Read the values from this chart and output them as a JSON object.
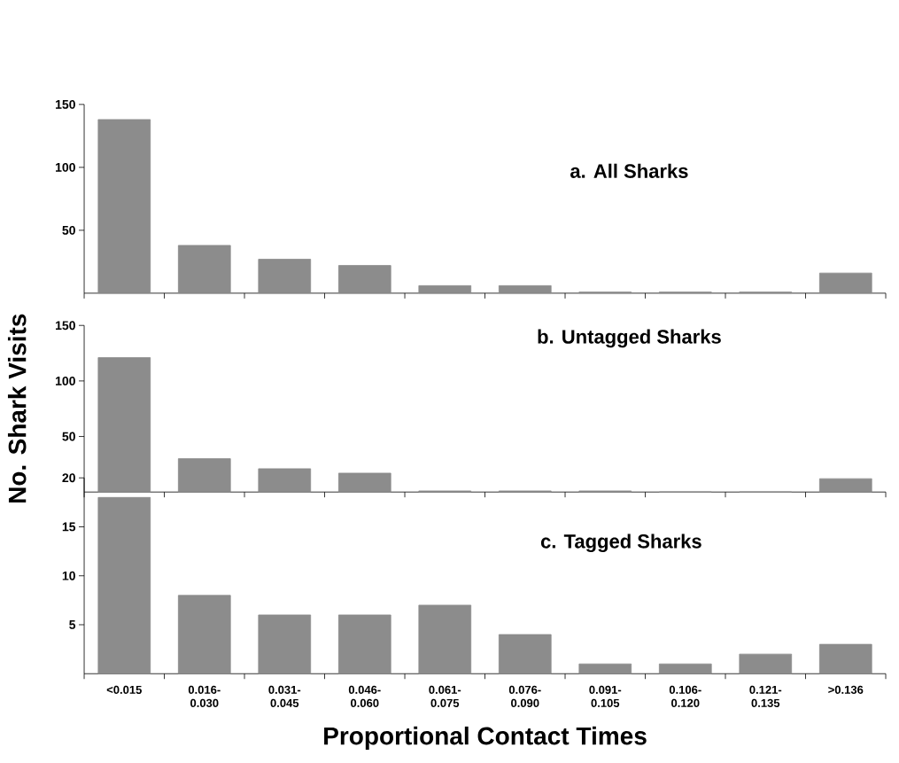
{
  "chart_data": [
    {
      "type": "bar",
      "title": "a. All Sharks",
      "categories": [
        null,
        null,
        null,
        null,
        null,
        null,
        null,
        null,
        null,
        null
      ],
      "values": [
        138,
        38,
        27,
        22,
        6,
        6,
        1,
        1,
        1,
        16
      ],
      "color": "#8c8c8c",
      "ylim": [
        0,
        150
      ],
      "yticks": [
        50,
        100,
        150
      ],
      "tick_labels": "y"
    },
    {
      "type": "bar",
      "title": "b. Untagged Sharks",
      "ylabel": "No. Shark Visits",
      "categories": [
        null,
        null,
        null,
        null,
        null,
        null,
        null,
        null,
        null,
        null
      ],
      "values": [
        121,
        30,
        21,
        17,
        1,
        1,
        1,
        0,
        0,
        12
      ],
      "color": "#8c8c8c",
      "ylim": [
        0,
        150
      ],
      "yticks": [
        50,
        100,
        150
      ],
      "tick_labels": "y"
    },
    {
      "type": "bar",
      "title": "c. Tagged Sharks",
      "xlabel": "Proportional Contact Times",
      "categories": [
        "<0.015",
        "0.016- 0.030",
        "0.031- 0.045",
        "0.046- 0.060",
        "0.061- 0.075",
        "0.076- 0.090",
        "0.091- 0.105",
        "0.106- 0.120",
        "0.121- 0.135",
        ">0.136"
      ],
      "values": [
        18,
        8,
        6,
        6,
        7,
        4,
        1,
        1,
        2,
        3
      ],
      "color": "#8c8c8c",
      "ylim": [
        0,
        20
      ],
      "yticks": [
        5,
        10,
        15,
        20
      ]
    }
  ]
}
